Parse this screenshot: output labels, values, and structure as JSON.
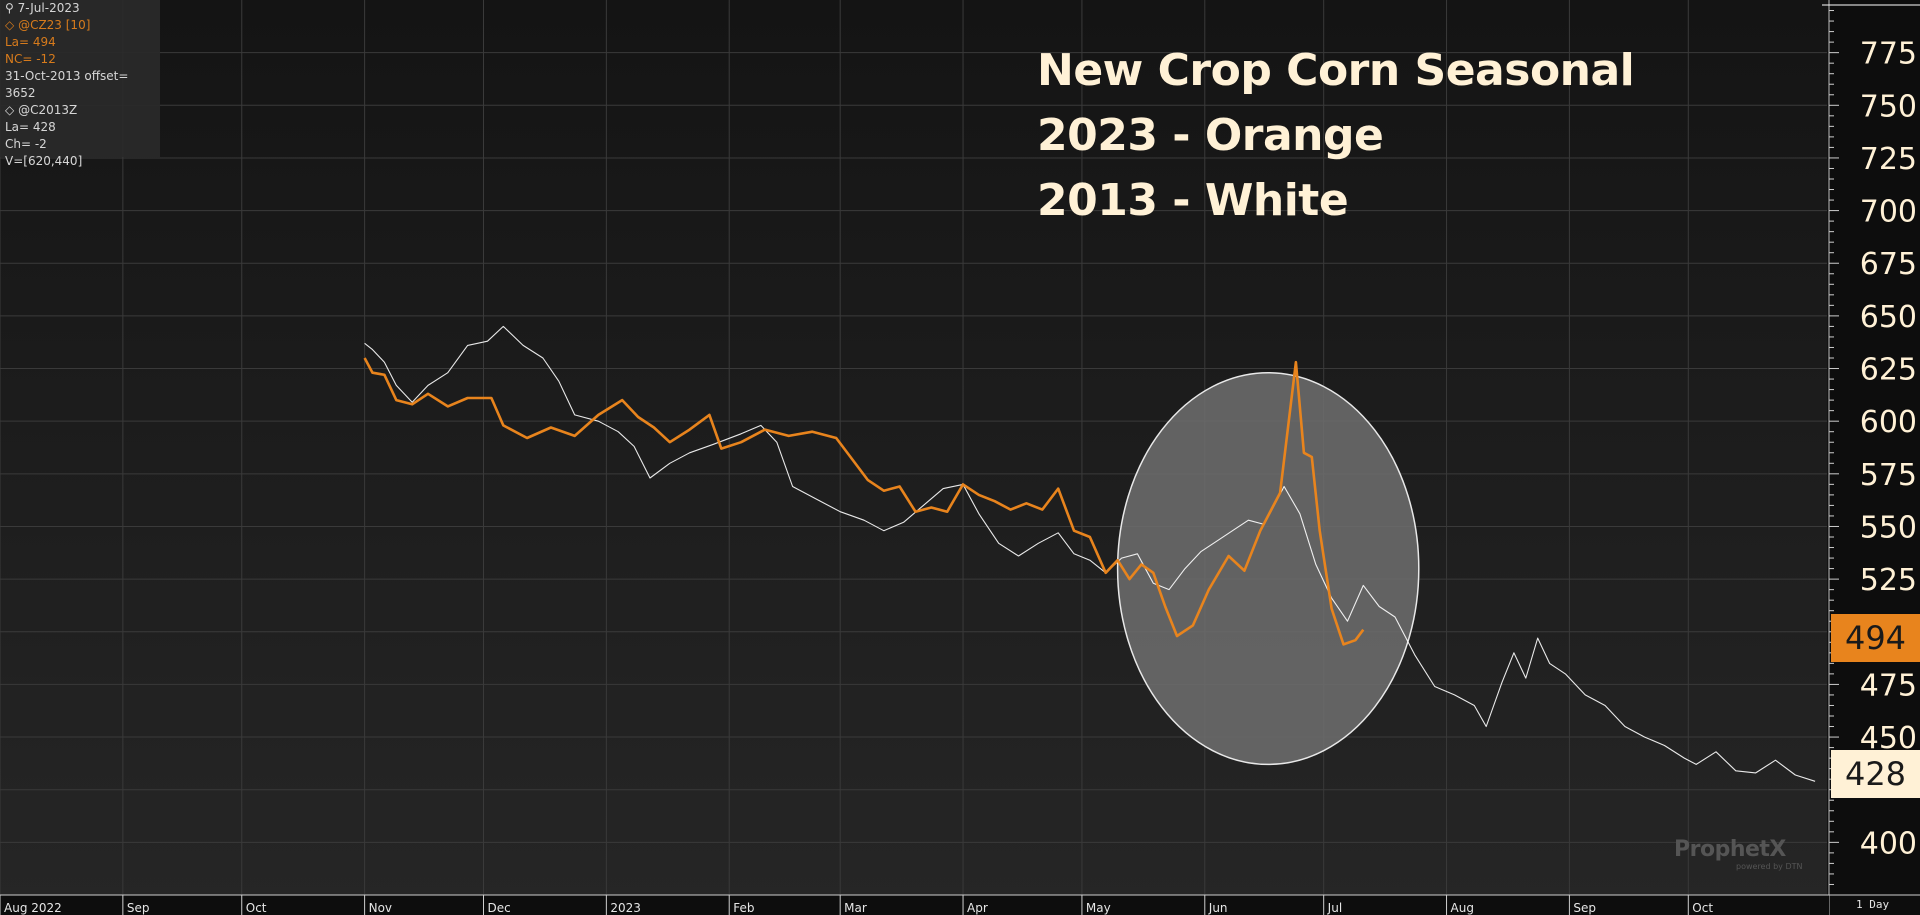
{
  "info_panel": {
    "date": "7-Jul-2023",
    "symbol1": "@CZ23 [10]",
    "last1": "La= 494",
    "change1": "NC= -12",
    "offset": "31-Oct-2013 offset= 3652",
    "symbol2": "@C2013Z",
    "last2": "La= 428",
    "change2": "Ch= -2",
    "view": "V=[620,440]"
  },
  "badges": {
    "orange_value": "494",
    "white_value": "428"
  },
  "logo": {
    "name": "ProphetX",
    "sub": "powered by DTN"
  },
  "timeframe": "1 Day",
  "colors": {
    "background": "#121212",
    "orange": "#e8841d",
    "white": "#ffffff",
    "title": "#fff1d6",
    "grid": "#3a3a3a"
  },
  "chart_data": {
    "type": "line",
    "title": "New Crop Corn Seasonal",
    "subtitle_lines": [
      "2023 - Orange",
      "2013 - White"
    ],
    "x_tick_labels": [
      "Aug 2022",
      "Sep",
      "Oct",
      "Nov",
      "Dec",
      "2023",
      "Feb",
      "Mar",
      "Apr",
      "May",
      "Jun",
      "Jul",
      "Aug",
      "Sep",
      "Oct"
    ],
    "x_range": [
      "2022-08-01",
      "2023-11-05"
    ],
    "y_range": [
      375,
      800
    ],
    "y_ticks": [
      400,
      425,
      450,
      475,
      500,
      525,
      550,
      575,
      600,
      625,
      650,
      675,
      700,
      725,
      750,
      775
    ],
    "y_tick_labels": [
      "400",
      "",
      "450",
      "475",
      "",
      "525",
      "550",
      "575",
      "600",
      "625",
      "650",
      "675",
      "700",
      "725",
      "750",
      "775"
    ],
    "grid": true,
    "highlight_ellipse": {
      "center_x": "2023-06-17",
      "center_y": 530,
      "radius_days": 38,
      "radius_y": 93
    },
    "series": [
      {
        "color": "#e8841d",
        "points": [
          [
            "2022-11-01",
            630
          ],
          [
            "2022-11-03",
            623
          ],
          [
            "2022-11-06",
            622
          ],
          [
            "2022-11-09",
            610
          ],
          [
            "2022-11-13",
            608
          ],
          [
            "2022-11-17",
            613
          ],
          [
            "2022-11-22",
            607
          ],
          [
            "2022-11-27",
            611
          ],
          [
            "2022-12-03",
            611
          ],
          [
            "2022-12-06",
            598
          ],
          [
            "2022-12-12",
            592
          ],
          [
            "2022-12-18",
            597
          ],
          [
            "2022-12-24",
            593
          ],
          [
            "2022-12-30",
            603
          ],
          [
            "2023-01-05",
            610
          ],
          [
            "2023-01-09",
            602
          ],
          [
            "2023-01-13",
            597
          ],
          [
            "2023-01-17",
            590
          ],
          [
            "2023-01-22",
            596
          ],
          [
            "2023-01-27",
            603
          ],
          [
            "2023-01-30",
            587
          ],
          [
            "2023-02-04",
            590
          ],
          [
            "2023-02-10",
            596
          ],
          [
            "2023-02-16",
            593
          ],
          [
            "2023-02-22",
            595
          ],
          [
            "2023-02-28",
            592
          ],
          [
            "2023-03-04",
            582
          ],
          [
            "2023-03-08",
            572
          ],
          [
            "2023-03-12",
            567
          ],
          [
            "2023-03-16",
            569
          ],
          [
            "2023-03-20",
            557
          ],
          [
            "2023-03-24",
            559
          ],
          [
            "2023-03-28",
            557
          ],
          [
            "2023-04-01",
            570
          ],
          [
            "2023-04-05",
            565
          ],
          [
            "2023-04-09",
            562
          ],
          [
            "2023-04-13",
            558
          ],
          [
            "2023-04-17",
            561
          ],
          [
            "2023-04-21",
            558
          ],
          [
            "2023-04-25",
            568
          ],
          [
            "2023-04-29",
            548
          ],
          [
            "2023-05-03",
            545
          ],
          [
            "2023-05-07",
            528
          ],
          [
            "2023-05-10",
            534
          ],
          [
            "2023-05-13",
            525
          ],
          [
            "2023-05-16",
            532
          ],
          [
            "2023-05-19",
            528
          ],
          [
            "2023-05-22",
            512
          ],
          [
            "2023-05-25",
            498
          ],
          [
            "2023-05-29",
            503
          ],
          [
            "2023-06-02",
            520
          ],
          [
            "2023-06-07",
            536
          ],
          [
            "2023-06-11",
            529
          ],
          [
            "2023-06-15",
            548
          ],
          [
            "2023-06-20",
            566
          ],
          [
            "2023-06-22",
            597
          ],
          [
            "2023-06-24",
            628
          ],
          [
            "2023-06-26",
            585
          ],
          [
            "2023-06-28",
            583
          ],
          [
            "2023-06-30",
            548
          ],
          [
            "2023-07-03",
            511
          ],
          [
            "2023-07-06",
            494
          ],
          [
            "2023-07-09",
            496
          ],
          [
            "2023-07-11",
            501
          ]
        ]
      },
      {
        "color": "#ffffff",
        "points": [
          [
            "2022-11-01",
            637
          ],
          [
            "2022-11-03",
            634
          ],
          [
            "2022-11-06",
            628
          ],
          [
            "2022-11-09",
            617
          ],
          [
            "2022-11-13",
            609
          ],
          [
            "2022-11-17",
            617
          ],
          [
            "2022-11-22",
            623
          ],
          [
            "2022-11-27",
            636
          ],
          [
            "2022-12-02",
            638
          ],
          [
            "2022-12-06",
            645
          ],
          [
            "2022-12-11",
            636
          ],
          [
            "2022-12-16",
            630
          ],
          [
            "2022-12-20",
            619
          ],
          [
            "2022-12-24",
            603
          ],
          [
            "2022-12-30",
            600
          ],
          [
            "2023-01-04",
            595
          ],
          [
            "2023-01-08",
            588
          ],
          [
            "2023-01-12",
            573
          ],
          [
            "2023-01-17",
            580
          ],
          [
            "2023-01-22",
            585
          ],
          [
            "2023-01-28",
            589
          ],
          [
            "2023-02-04",
            594
          ],
          [
            "2023-02-09",
            598
          ],
          [
            "2023-02-13",
            590
          ],
          [
            "2023-02-17",
            569
          ],
          [
            "2023-02-23",
            563
          ],
          [
            "2023-03-01",
            557
          ],
          [
            "2023-03-07",
            553
          ],
          [
            "2023-03-12",
            548
          ],
          [
            "2023-03-17",
            552
          ],
          [
            "2023-03-22",
            560
          ],
          [
            "2023-03-27",
            568
          ],
          [
            "2023-04-01",
            570
          ],
          [
            "2023-04-05",
            556
          ],
          [
            "2023-04-10",
            542
          ],
          [
            "2023-04-15",
            536
          ],
          [
            "2023-04-20",
            542
          ],
          [
            "2023-04-25",
            547
          ],
          [
            "2023-04-29",
            537
          ],
          [
            "2023-05-03",
            534
          ],
          [
            "2023-05-07",
            528
          ],
          [
            "2023-05-11",
            535
          ],
          [
            "2023-05-15",
            537
          ],
          [
            "2023-05-19",
            523
          ],
          [
            "2023-05-23",
            520
          ],
          [
            "2023-05-27",
            530
          ],
          [
            "2023-05-31",
            538
          ],
          [
            "2023-06-04",
            543
          ],
          [
            "2023-06-08",
            548
          ],
          [
            "2023-06-12",
            553
          ],
          [
            "2023-06-16",
            551
          ],
          [
            "2023-06-21",
            569
          ],
          [
            "2023-06-25",
            556
          ],
          [
            "2023-06-29",
            532
          ],
          [
            "2023-07-03",
            516
          ],
          [
            "2023-07-07",
            505
          ],
          [
            "2023-07-11",
            522
          ],
          [
            "2023-07-15",
            512
          ],
          [
            "2023-07-19",
            507
          ],
          [
            "2023-07-24",
            489
          ],
          [
            "2023-07-29",
            474
          ],
          [
            "2023-08-03",
            470
          ],
          [
            "2023-08-08",
            465
          ],
          [
            "2023-08-11",
            455
          ],
          [
            "2023-08-15",
            476
          ],
          [
            "2023-08-18",
            490
          ],
          [
            "2023-08-21",
            478
          ],
          [
            "2023-08-24",
            497
          ],
          [
            "2023-08-27",
            485
          ],
          [
            "2023-08-31",
            480
          ],
          [
            "2023-09-05",
            470
          ],
          [
            "2023-09-10",
            465
          ],
          [
            "2023-09-15",
            455
          ],
          [
            "2023-09-20",
            450
          ],
          [
            "2023-09-25",
            446
          ],
          [
            "2023-09-30",
            440
          ],
          [
            "2023-10-03",
            437
          ],
          [
            "2023-10-08",
            443
          ],
          [
            "2023-10-13",
            434
          ],
          [
            "2023-10-18",
            433
          ],
          [
            "2023-10-23",
            439
          ],
          [
            "2023-10-28",
            432
          ],
          [
            "2023-11-02",
            429
          ]
        ]
      }
    ]
  }
}
